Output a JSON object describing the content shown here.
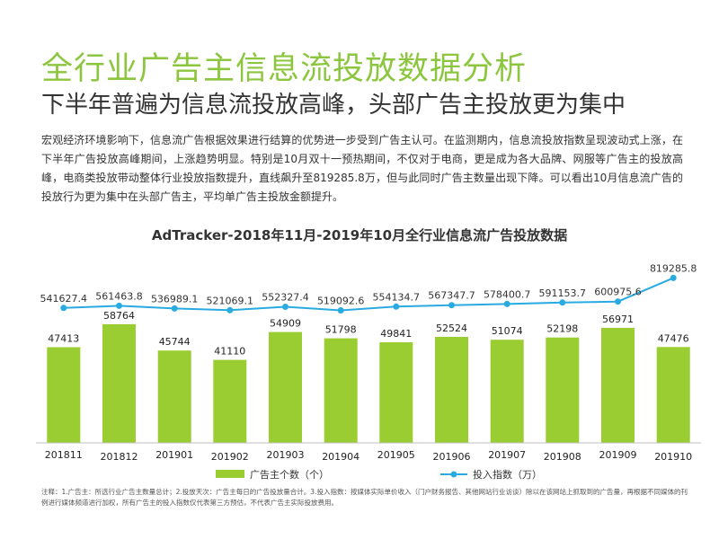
{
  "header": {
    "title": "全行业广告主信息流投放数据分析",
    "subtitle": "下半年普遍为信息流投放高峰，头部广告主投放更为集中",
    "description": "宏观经济环境影响下，信息流广告根据效果进行结算的优势进一步受到广告主认可。在监测期内，信息流投放指数呈现波动式上涨，在下半年广告投放高峰期间，上涨趋势明显。特别是10月双十一预热期间，不仅对于电商，更是成为各大品牌、网服等广告主的投放高峰，电商类投放带动整体行业投放指数提升，直线飙升至819285.8万，但与此同时广告主数量出现下降。可以看出10月信息流广告的投放行为更为集中在头部广告主，平均单广告主投放金额提升。"
  },
  "chart_data": {
    "type": "bar+line",
    "title": "AdTracker-2018年11月-2019年10月全行业信息流广告投放数据",
    "categories": [
      "201811",
      "201812",
      "201901",
      "201902",
      "201903",
      "201904",
      "201905",
      "201906",
      "201907",
      "201908",
      "201909",
      "201910"
    ],
    "series": [
      {
        "name": "广告主个数（个）",
        "type": "bar",
        "color": "#9acd32",
        "values": [
          47413,
          58764,
          45744,
          41110,
          54909,
          51798,
          49841,
          52524,
          51074,
          52198,
          56971,
          47476
        ]
      },
      {
        "name": "投入指数（万）",
        "type": "line",
        "color": "#29abe2",
        "values": [
          541627.4,
          561463.8,
          536989.1,
          521069.1,
          552327.4,
          519092.6,
          554134.7,
          567347.7,
          578400.7,
          591153.7,
          600975.6,
          819285.8
        ],
        "labels": [
          "541627.4",
          "561463.8",
          "536989.1",
          "521069.1",
          "552327.4",
          "519092.6",
          "554134.7",
          "567347.7",
          "578400.7",
          "591153.7",
          "600975.6",
          "819285.8"
        ]
      }
    ],
    "legend": [
      "广告主个数（个）",
      "投入指数（万）"
    ],
    "legend_position": "bottom",
    "grid": false
  },
  "footnote": "注释：1.广告主：所选行业广告主数量总计；2.投放天次：广告主每日的广告投放量合计。3.投入指数：按媒体实际单价收入（门户财务报告、其他网站行业访谈）除以在该网站上抓取到的广告量，再根据不同媒体的刊例进行媒体频道进行加权，所有广告主的投入指数仅代表第三方预估，不代表广告主实际投放费用。"
}
